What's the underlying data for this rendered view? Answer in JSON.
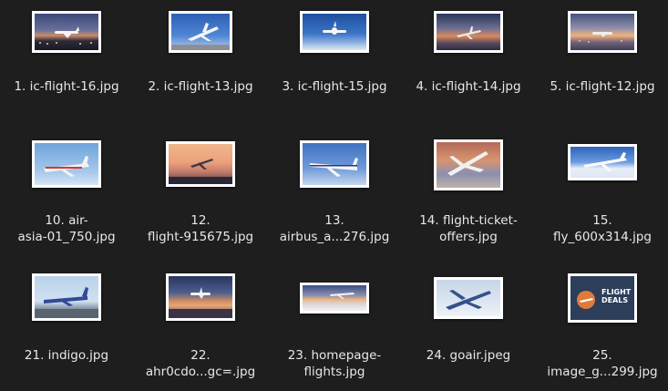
{
  "files": [
    {
      "label_line1": "1. ic-flight-16.jpg",
      "label_line2": "",
      "bg": "dusk-runway",
      "icon": "image-thumbnail-icon"
    },
    {
      "label_line1": "2. ic-flight-13.jpg",
      "label_line2": "",
      "bg": "blue-sky",
      "icon": "image-thumbnail-icon"
    },
    {
      "label_line1": "3. ic-flight-15.jpg",
      "label_line2": "",
      "bg": "deep-blue",
      "icon": "image-thumbnail-icon"
    },
    {
      "label_line1": "4. ic-flight-14.jpg",
      "label_line2": "",
      "bg": "sunset1",
      "icon": "image-thumbnail-icon"
    },
    {
      "label_line1": "5. ic-flight-12.jpg",
      "label_line2": "",
      "bg": "sunset2",
      "icon": "image-thumbnail-icon"
    },
    {
      "label_line1": "10. air-",
      "label_line2": "asia-01_750.jpg",
      "bg": "light-sky",
      "icon": "image-thumbnail-icon"
    },
    {
      "label_line1": "12.",
      "label_line2": "flight-915675.jpg",
      "bg": "orange",
      "icon": "image-thumbnail-icon"
    },
    {
      "label_line1": "13.",
      "label_line2": "airbus_a...276.jpg",
      "bg": "sky-blue",
      "icon": "image-thumbnail-icon"
    },
    {
      "label_line1": "14. flight-ticket-",
      "label_line2": "offers.jpg",
      "bg": "clouds",
      "icon": "image-thumbnail-icon"
    },
    {
      "label_line1": "15.",
      "label_line2": "fly_600x314.jpg",
      "bg": "fly",
      "icon": "image-thumbnail-icon"
    },
    {
      "label_line1": "21. indigo.jpg",
      "label_line2": "",
      "bg": "indigo",
      "icon": "image-thumbnail-icon"
    },
    {
      "label_line1": "22.",
      "label_line2": "ahr0cdo...gc=.jpg",
      "bg": "dusk2",
      "icon": "image-thumbnail-icon"
    },
    {
      "label_line1": "23. homepage-",
      "label_line2": "flights.jpg",
      "bg": "homepage",
      "icon": "image-thumbnail-icon"
    },
    {
      "label_line1": "24. goair.jpeg",
      "label_line2": "",
      "bg": "goair",
      "icon": "image-thumbnail-icon"
    },
    {
      "label_line1": "25.",
      "label_line2": "image_g...299.jpg",
      "bg": "deals",
      "icon": "image-thumbnail-icon"
    }
  ],
  "deals_thumb": {
    "line1": "FLIGHT",
    "line2": "DEALS"
  },
  "colors": {
    "background": "#1e1e1e",
    "label": "#e8e8e8",
    "thumb_border": "#ffffff"
  }
}
